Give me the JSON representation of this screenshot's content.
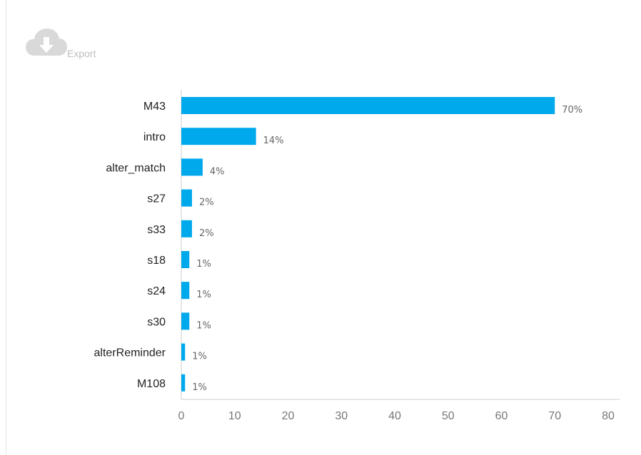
{
  "toolbar": {
    "export_label": "Export",
    "export_icon": "cloud-download-icon"
  },
  "colors": {
    "bar": "#00a8ec",
    "axis": "#cccccc",
    "export_icon": "#d9d9d9"
  },
  "chart_data": {
    "type": "bar",
    "orientation": "horizontal",
    "categories": [
      "M43",
      "intro",
      "alter_match",
      "s27",
      "s33",
      "s18",
      "s24",
      "s30",
      "alterReminder",
      "M108"
    ],
    "values": [
      70,
      14,
      4,
      2,
      2,
      1.5,
      1.5,
      1.5,
      0.7,
      0.7
    ],
    "data_labels": [
      "70%",
      "14%",
      "4%",
      "2%",
      "2%",
      "1%",
      "1%",
      "1%",
      "1%",
      "1%"
    ],
    "x_ticks": [
      "0",
      "10",
      "20",
      "30",
      "40",
      "50",
      "60",
      "70",
      "80"
    ],
    "xlim": [
      0,
      80
    ],
    "title": "",
    "xlabel": "",
    "ylabel": "",
    "grid": false
  }
}
